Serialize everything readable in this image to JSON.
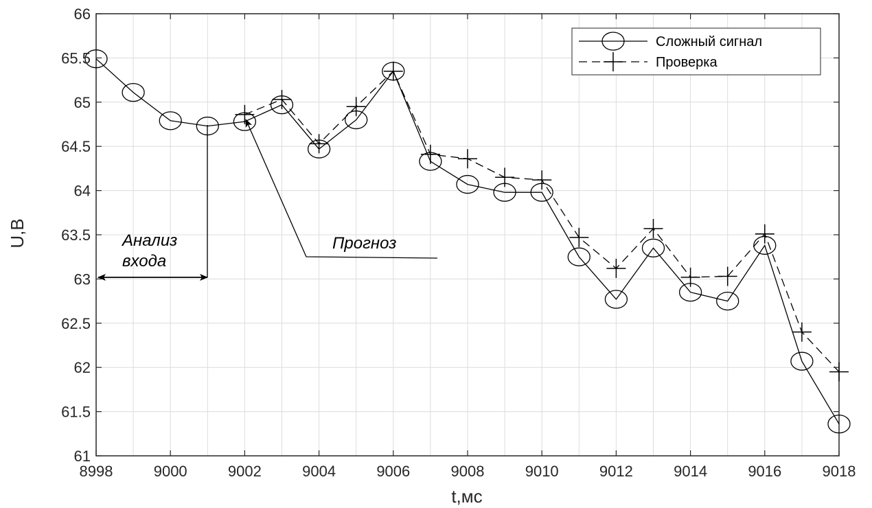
{
  "chart_data": {
    "type": "line",
    "title": "",
    "xlabel": "t,мс",
    "ylabel": "U,B",
    "xlim": [
      8998,
      9018
    ],
    "ylim": [
      61,
      66
    ],
    "xticks": [
      8998,
      9000,
      9002,
      9004,
      9006,
      9008,
      9010,
      9012,
      9014,
      9016,
      9018
    ],
    "yticks": [
      61,
      61.5,
      62,
      62.5,
      63,
      63.5,
      64,
      64.5,
      65,
      65.5,
      66
    ],
    "xtick_labels": [
      "8998",
      "9000",
      "9002",
      "9004",
      "9006",
      "9008",
      "9010",
      "9012",
      "9014",
      "9016",
      "9018"
    ],
    "ytick_labels": [
      "61",
      "61.5",
      "62",
      "62.5",
      "63",
      "63.5",
      "64",
      "64.5",
      "65",
      "65.5",
      "66"
    ],
    "grid": true,
    "legend_position": "top-right",
    "series": [
      {
        "name": "Сложный сигнал",
        "line_style": "solid",
        "marker": "circle",
        "color": "#000000",
        "x": [
          8998,
          8999,
          9000,
          9001,
          9002,
          9003,
          9004,
          9005,
          9006,
          9007,
          9008,
          9009,
          9010,
          9011,
          9012,
          9013,
          9014,
          9015,
          9016,
          9017,
          9018
        ],
        "y": [
          65.49,
          65.11,
          64.79,
          64.73,
          64.78,
          64.97,
          64.47,
          64.8,
          65.35,
          64.33,
          64.07,
          63.98,
          63.98,
          63.25,
          62.77,
          63.35,
          62.85,
          62.75,
          63.38,
          62.07,
          61.36
        ]
      },
      {
        "name": "Проверка",
        "line_style": "dashed",
        "marker": "plus",
        "color": "#000000",
        "x": [
          9002,
          9003,
          9004,
          9005,
          9006,
          9007,
          9008,
          9009,
          9010,
          9011,
          9012,
          9013,
          9014,
          9015,
          9016,
          9017,
          9018
        ],
        "y": [
          64.86,
          65.03,
          64.53,
          64.95,
          65.35,
          64.41,
          64.36,
          64.15,
          64.12,
          63.47,
          63.12,
          63.57,
          63.02,
          63.03,
          63.51,
          62.4,
          61.95
        ]
      }
    ],
    "annotations": [
      {
        "id": "analysis",
        "lines": [
          "Анализ",
          "входа"
        ]
      },
      {
        "id": "forecast",
        "text": "Прогноз"
      }
    ]
  }
}
